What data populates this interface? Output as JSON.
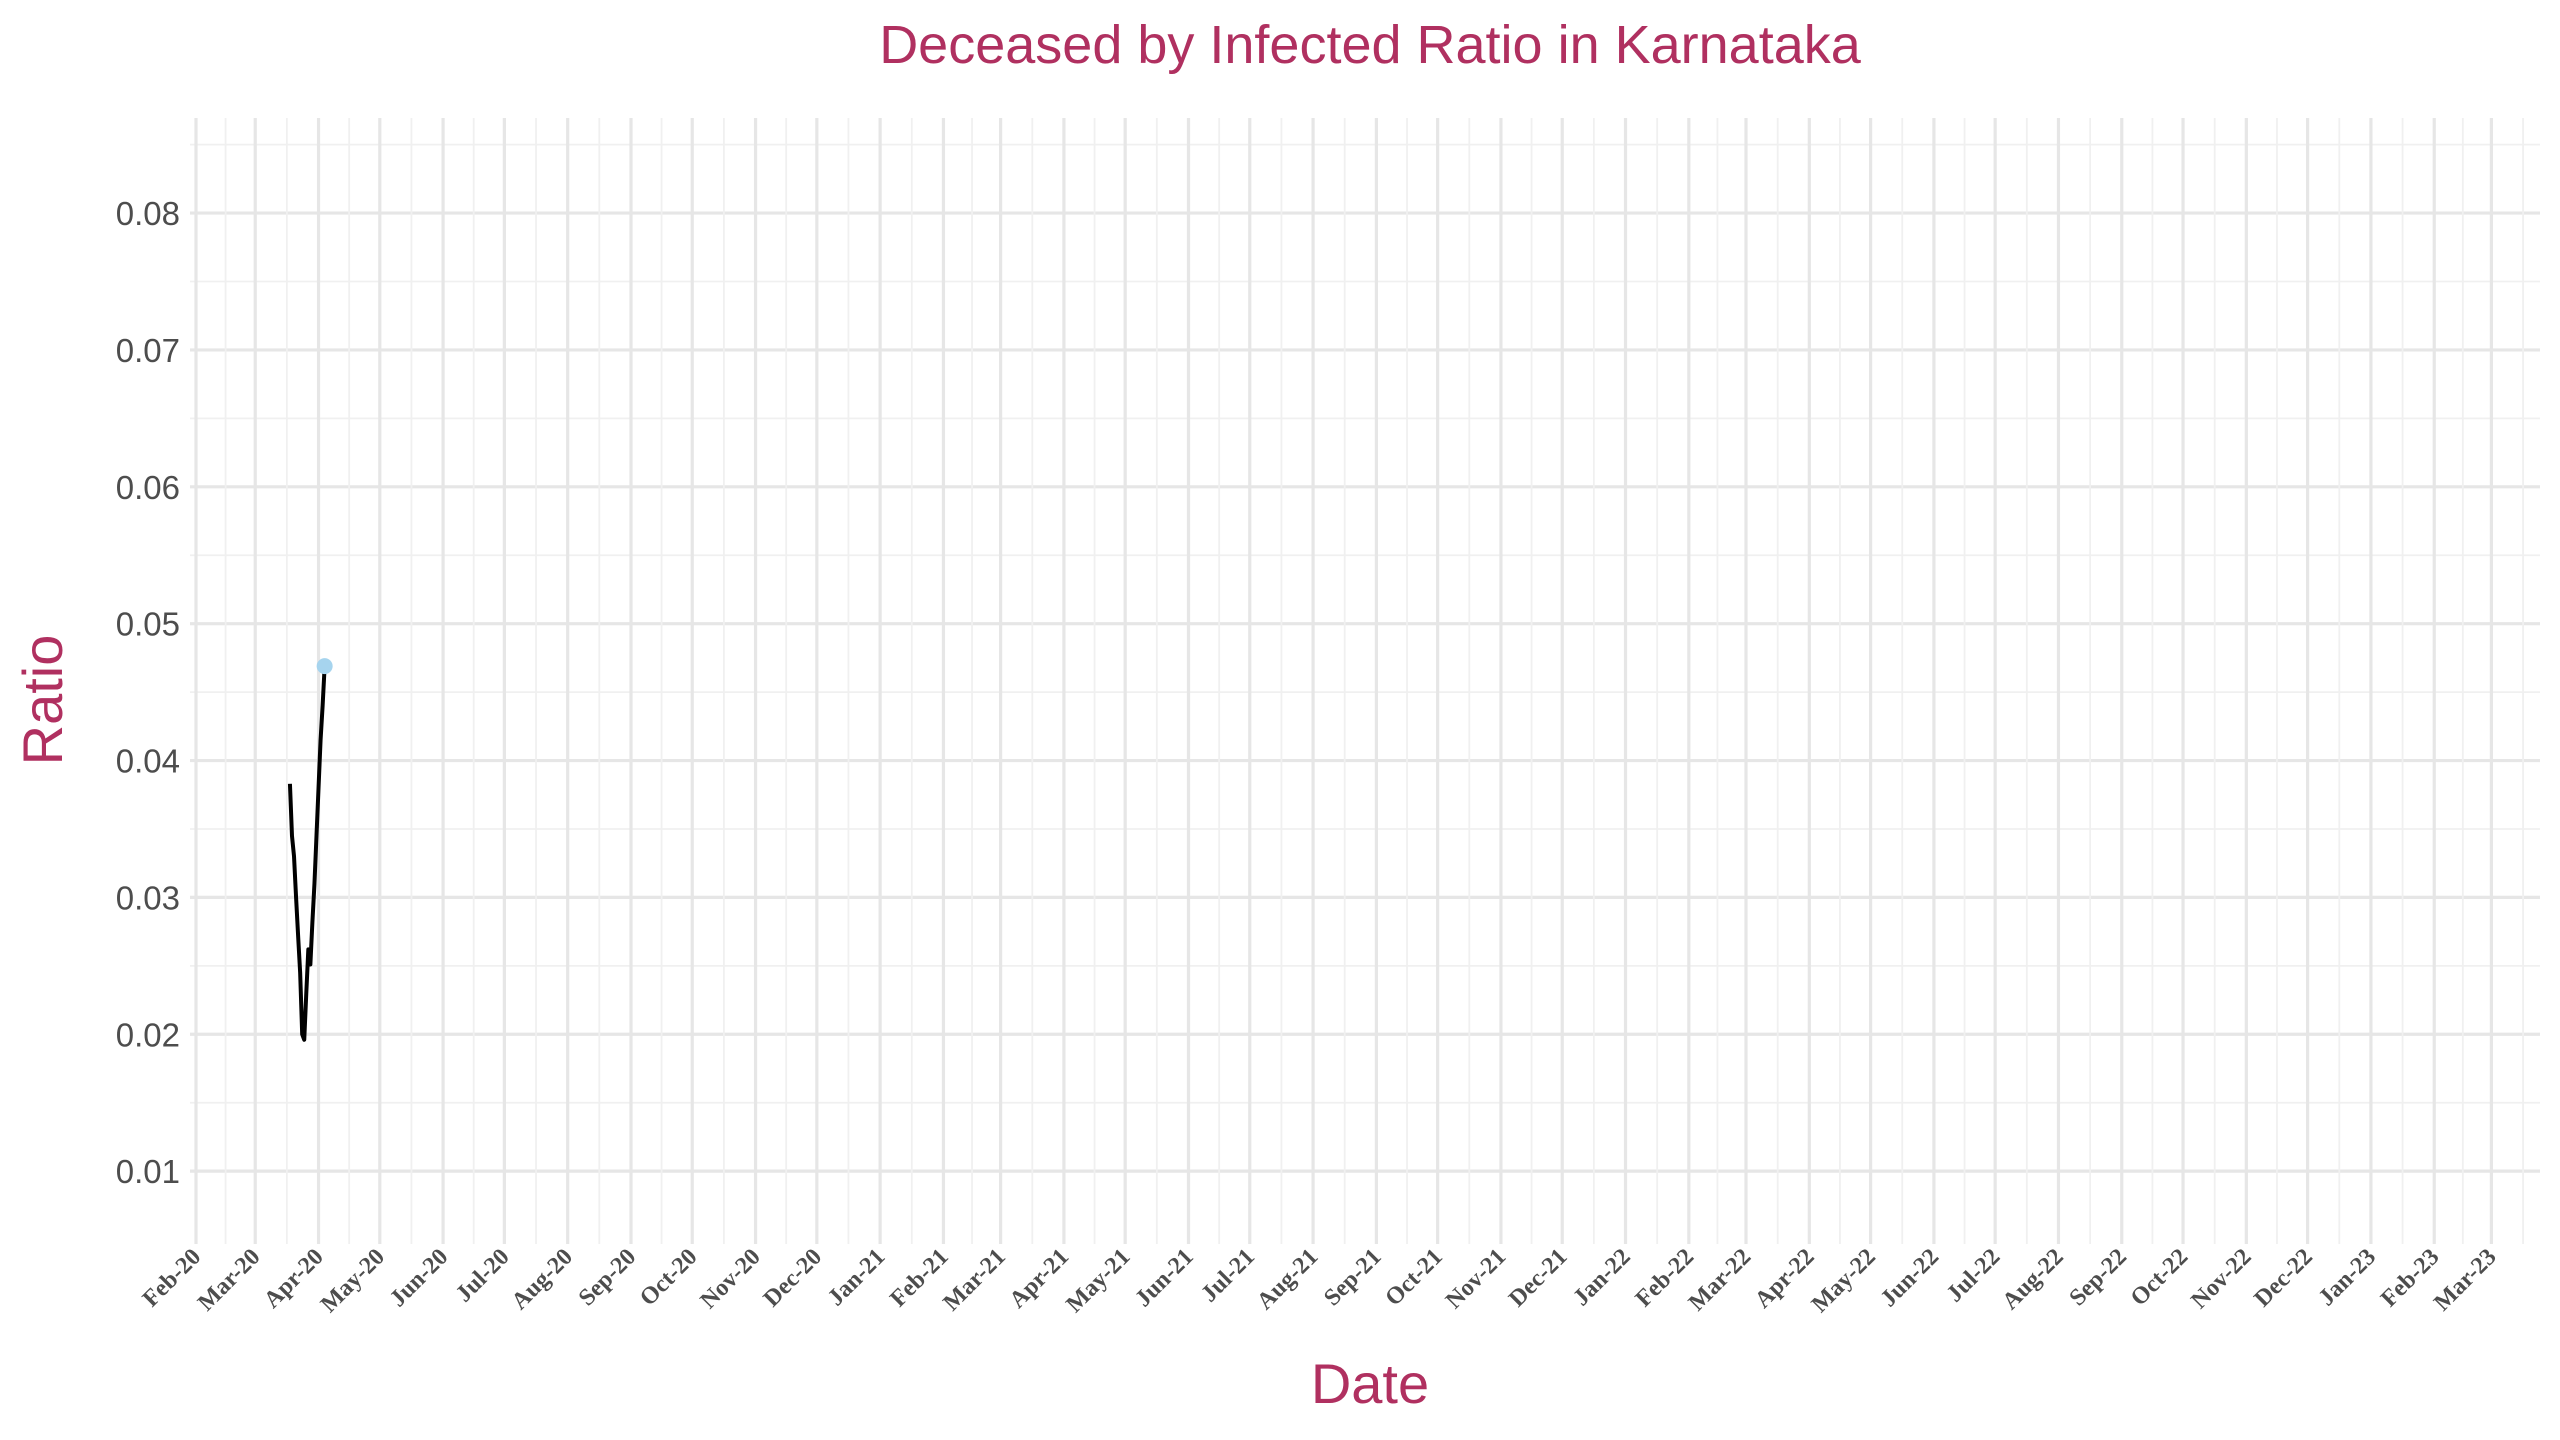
{
  "chart_data": {
    "type": "line",
    "title": "Deceased by Infected Ratio in Karnataka",
    "xlabel": "Date",
    "ylabel": "Ratio",
    "x_tick_labels": [
      "Feb-20",
      "Mar-20",
      "Apr-20",
      "May-20",
      "Jun-20",
      "Jul-20",
      "Aug-20",
      "Sep-20",
      "Oct-20",
      "Nov-20",
      "Dec-20",
      "Jan-21",
      "Feb-21",
      "Mar-21",
      "Apr-21",
      "May-21",
      "Jun-21",
      "Jul-21",
      "Aug-21",
      "Sep-21",
      "Oct-21",
      "Nov-21",
      "Dec-21",
      "Jan-22",
      "Feb-22",
      "Mar-22",
      "Apr-22",
      "May-22",
      "Jun-22",
      "Jul-22",
      "Aug-22",
      "Sep-22",
      "Oct-22",
      "Nov-22",
      "Dec-22",
      "Jan-23",
      "Feb-23",
      "Mar-23"
    ],
    "y_tick_labels": [
      "0.01",
      "0.02",
      "0.03",
      "0.04",
      "0.05",
      "0.06",
      "0.07",
      "0.08"
    ],
    "y_ticks": [
      0.01,
      0.02,
      0.03,
      0.04,
      0.05,
      0.06,
      0.07,
      0.08
    ],
    "ylim": [
      0.0057,
      0.0868
    ],
    "xlim": [
      "2020-02-01",
      "2023-03-15"
    ],
    "grid": true,
    "legend": "none",
    "colors": {
      "line": "#000000",
      "last_point": "#a6d4ee",
      "title": "#b03060",
      "grid": "#e6e6e6"
    },
    "series": [
      {
        "x": [
          "2020-03-18",
          "2020-03-19",
          "2020-03-20",
          "2020-03-21",
          "2020-03-22",
          "2020-03-23",
          "2020-03-24",
          "2020-03-25",
          "2020-03-26",
          "2020-03-27",
          "2020-03-28",
          "2020-03-29",
          "2020-03-30",
          "2020-03-31",
          "2020-04-01",
          "2020-04-02",
          "2020-04-03",
          "2020-04-04"
        ],
        "y": [
          0.0383,
          0.0345,
          0.033,
          0.03,
          0.0272,
          0.0245,
          0.02,
          0.0196,
          0.023,
          0.0262,
          0.0251,
          0.0282,
          0.031,
          0.0345,
          0.038,
          0.0415,
          0.044,
          0.0469
        ]
      }
    ],
    "highlight_point": {
      "x": "2020-04-04",
      "y": 0.0469
    }
  }
}
